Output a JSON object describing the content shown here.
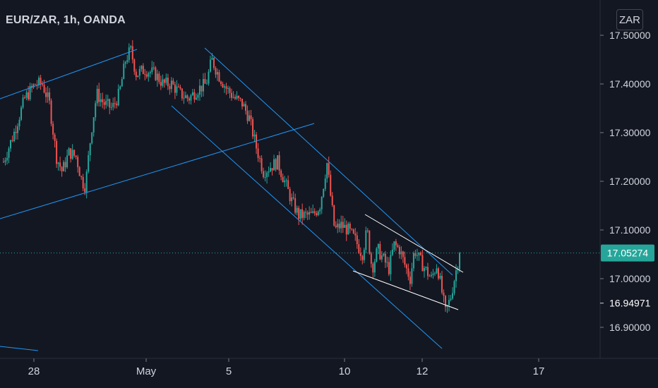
{
  "header": {
    "symbol_line": "EUR/ZAR, 1h, OANDA"
  },
  "currency_badge": "ZAR",
  "colors": {
    "background": "#131722",
    "up": "#26a69a",
    "down": "#ef5350",
    "trendline_blue": "#2196f3",
    "trendline_white": "#ffffff",
    "price_label_bg": "#26a69a",
    "axis_text": "#d1d4dc",
    "grid": "#1e222d"
  },
  "chart_data": {
    "type": "candlestick",
    "symbol": "EUR/ZAR",
    "interval": "1h",
    "source": "OANDA",
    "grid": false,
    "y_ticks": [
      "17.50000",
      "17.40000",
      "17.30000",
      "17.20000",
      "17.10000",
      "17.00000",
      "16.90000"
    ],
    "y_tick_values": [
      17.5,
      17.4,
      17.3,
      17.2,
      17.1,
      17.0,
      16.9
    ],
    "ylim": [
      16.86,
      17.53
    ],
    "x_ticks": [
      "28",
      "May",
      "5",
      "10",
      "12",
      "17"
    ],
    "current_price_label": "17.05274",
    "current_price": 17.05274,
    "marked_price_label": "16.94971",
    "marked_price": 16.94971,
    "close_path": [
      [
        0,
        17.24
      ],
      [
        1.5,
        17.3
      ],
      [
        3,
        17.37
      ],
      [
        4.5,
        17.4
      ],
      [
        5.5,
        17.4
      ],
      [
        6.5,
        17.36
      ],
      [
        7.5,
        17.25
      ],
      [
        8.3,
        17.22
      ],
      [
        9.3,
        17.26
      ],
      [
        10.3,
        17.25
      ],
      [
        11.1,
        17.2
      ],
      [
        11.6,
        17.19
      ],
      [
        12.4,
        17.3
      ],
      [
        13.2,
        17.38
      ],
      [
        14.2,
        17.36
      ],
      [
        15.4,
        17.35
      ],
      [
        16.4,
        17.38
      ],
      [
        17.3,
        17.45
      ],
      [
        18,
        17.47
      ],
      [
        18.8,
        17.42
      ],
      [
        20,
        17.43
      ],
      [
        21.5,
        17.42
      ],
      [
        22.6,
        17.4
      ],
      [
        23.8,
        17.4
      ],
      [
        25,
        17.38
      ],
      [
        26.2,
        17.37
      ],
      [
        27.6,
        17.39
      ],
      [
        28.7,
        17.4
      ],
      [
        29.5,
        17.45
      ],
      [
        30.4,
        17.42
      ],
      [
        31.6,
        17.39
      ],
      [
        32.8,
        17.37
      ],
      [
        33.8,
        17.36
      ],
      [
        34.8,
        17.33
      ],
      [
        35.8,
        17.27
      ],
      [
        36.8,
        17.22
      ],
      [
        37.8,
        17.23
      ],
      [
        38.8,
        17.24
      ],
      [
        39.8,
        17.2
      ],
      [
        40.8,
        17.16
      ],
      [
        41.8,
        17.13
      ],
      [
        42.8,
        17.13
      ],
      [
        43.8,
        17.13
      ],
      [
        44.8,
        17.15
      ],
      [
        45.4,
        17.2
      ],
      [
        45.8,
        17.24
      ],
      [
        46.4,
        17.16
      ],
      [
        46.9,
        17.1
      ],
      [
        47.8,
        17.11
      ],
      [
        48.8,
        17.1
      ],
      [
        49.8,
        17.08
      ],
      [
        50.8,
        17.05
      ],
      [
        51.5,
        17.1
      ],
      [
        52.2,
        17.02
      ],
      [
        53,
        17.06
      ],
      [
        53.8,
        17.04
      ],
      [
        54.6,
        17.02
      ],
      [
        55.3,
        17.07
      ],
      [
        56.1,
        17.06
      ],
      [
        56.8,
        17.03
      ],
      [
        57.6,
        17.0
      ],
      [
        58.2,
        17.06
      ],
      [
        58.9,
        17.04
      ],
      [
        59.7,
        17.02
      ],
      [
        60.6,
        17.0
      ],
      [
        61.4,
        17.03
      ],
      [
        62.0,
        16.98
      ],
      [
        62.6,
        16.93
      ],
      [
        63.3,
        16.96
      ],
      [
        64.0,
        17.01
      ],
      [
        64.6,
        17.05
      ]
    ]
  }
}
